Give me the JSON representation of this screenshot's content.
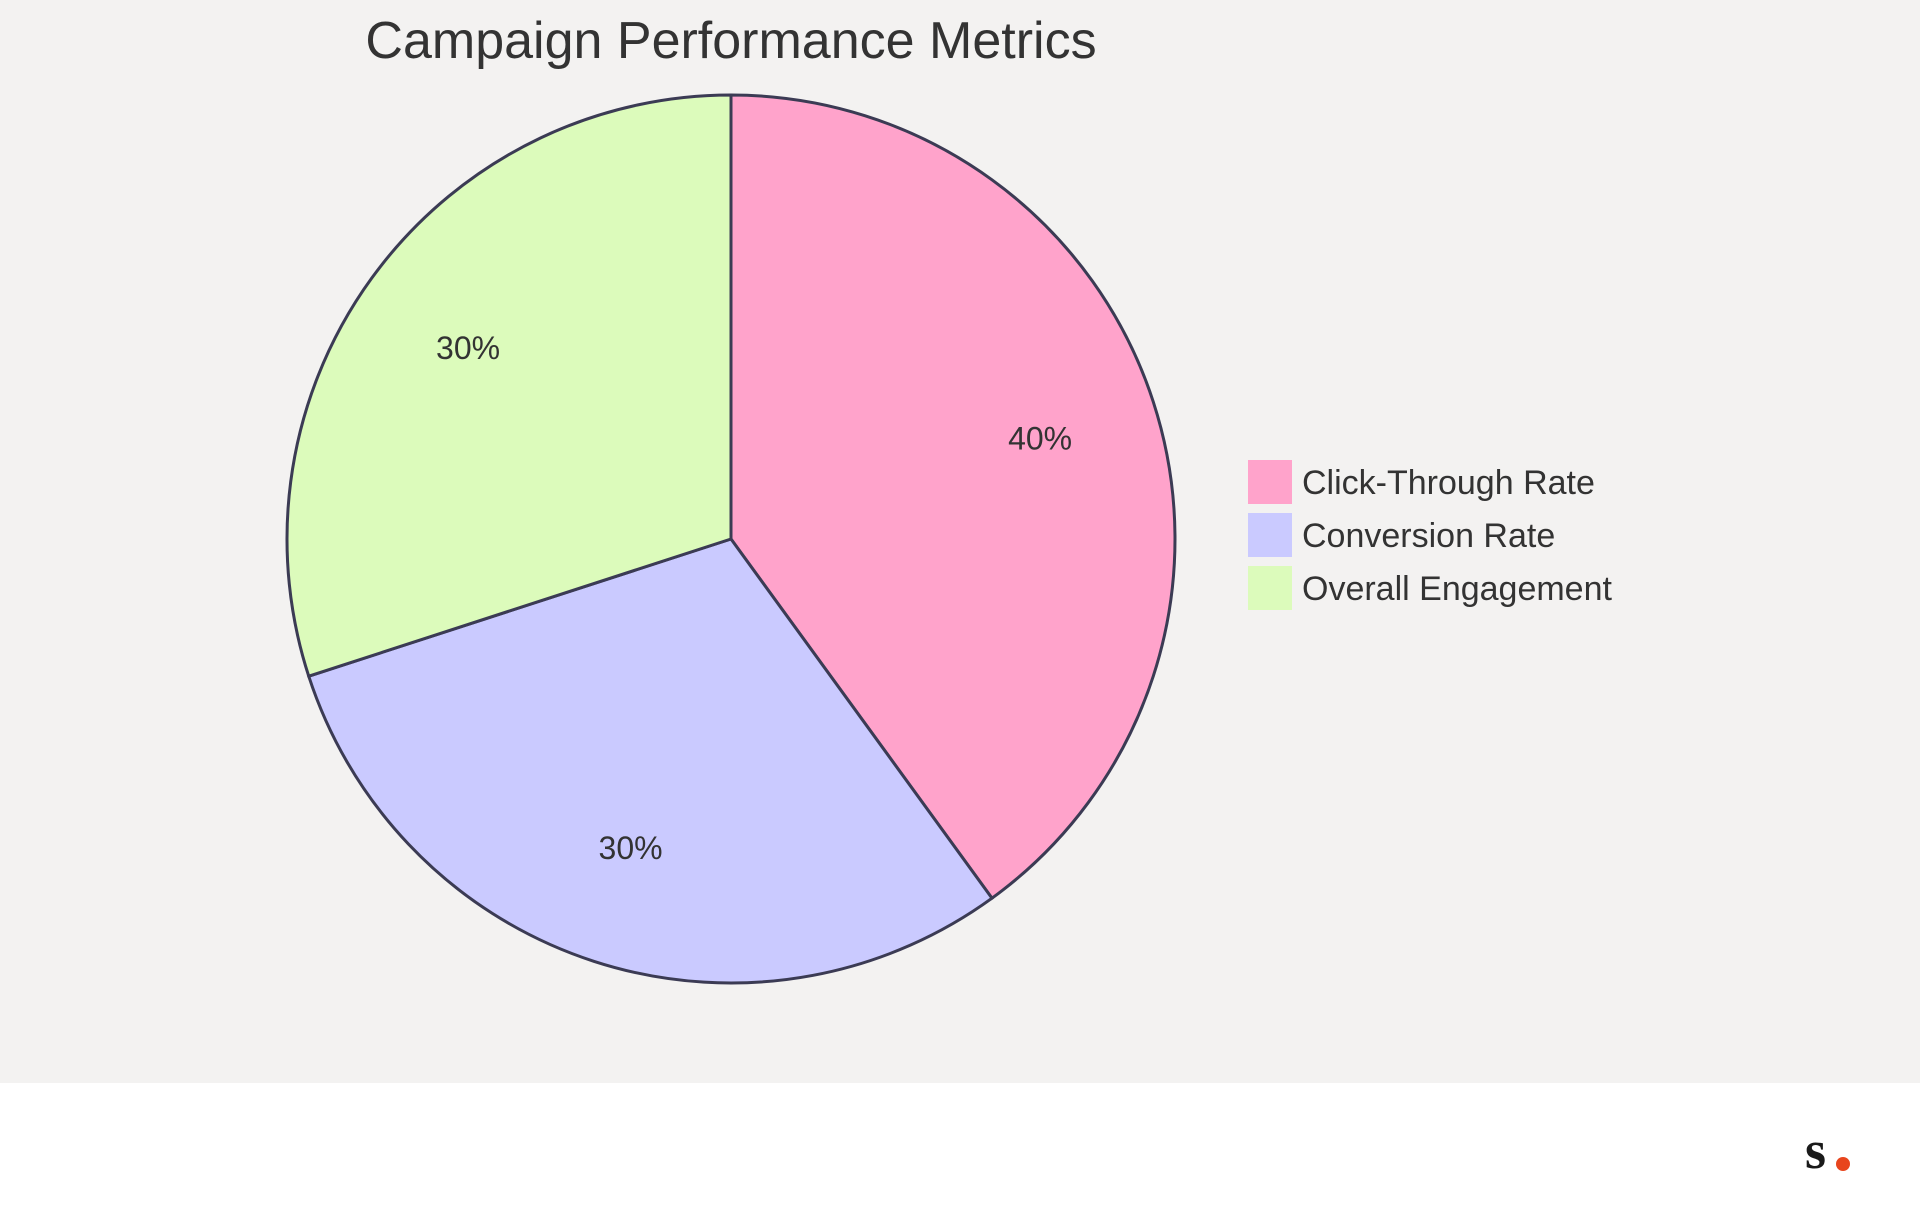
{
  "chart_data": {
    "type": "pie",
    "title": "Campaign Performance Metrics",
    "labels": [
      "Click-Through Rate",
      "Conversion Rate",
      "Overall Engagement"
    ],
    "values": [
      40,
      30,
      30
    ],
    "value_labels": [
      "40%",
      "30%",
      "30%"
    ],
    "colors": [
      "#ffa3cb",
      "#cacaff",
      "#dcfbbb"
    ],
    "legend_position": "right"
  },
  "brand": {
    "logo_text": "s",
    "dot_color": "#e8451d"
  }
}
